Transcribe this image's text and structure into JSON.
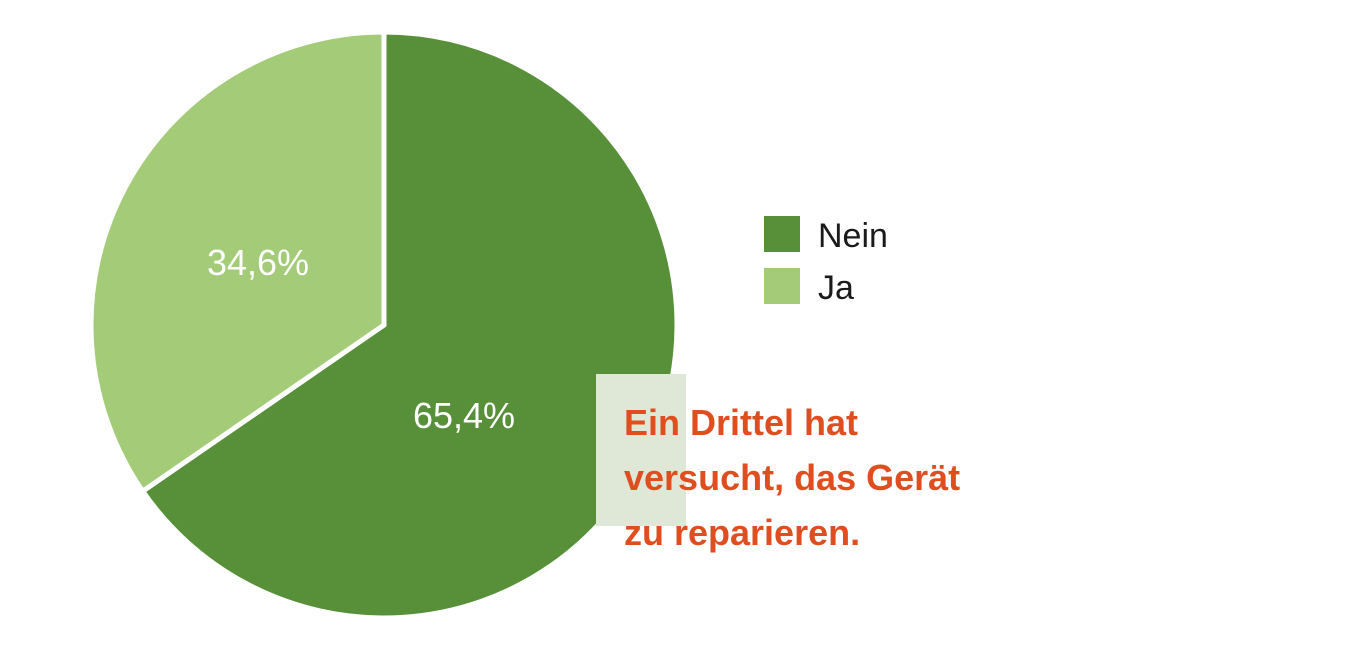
{
  "chart_data": {
    "type": "pie",
    "slices": [
      {
        "label": "Nein",
        "value": 65.4,
        "display": "65,4%",
        "color": "#58903a"
      },
      {
        "label": "Ja",
        "value": 34.6,
        "display": "34,6%",
        "color": "#a3cb78"
      }
    ],
    "legend": {
      "position": "right",
      "entries": [
        "Nein",
        "Ja"
      ]
    },
    "annotation_lines": [
      "Ein Drittel hat",
      "versucht, das Gerät",
      "zu reparieren."
    ],
    "annotation_color": "#e04e1f",
    "callout_bg_color": "#dfe8d6"
  }
}
